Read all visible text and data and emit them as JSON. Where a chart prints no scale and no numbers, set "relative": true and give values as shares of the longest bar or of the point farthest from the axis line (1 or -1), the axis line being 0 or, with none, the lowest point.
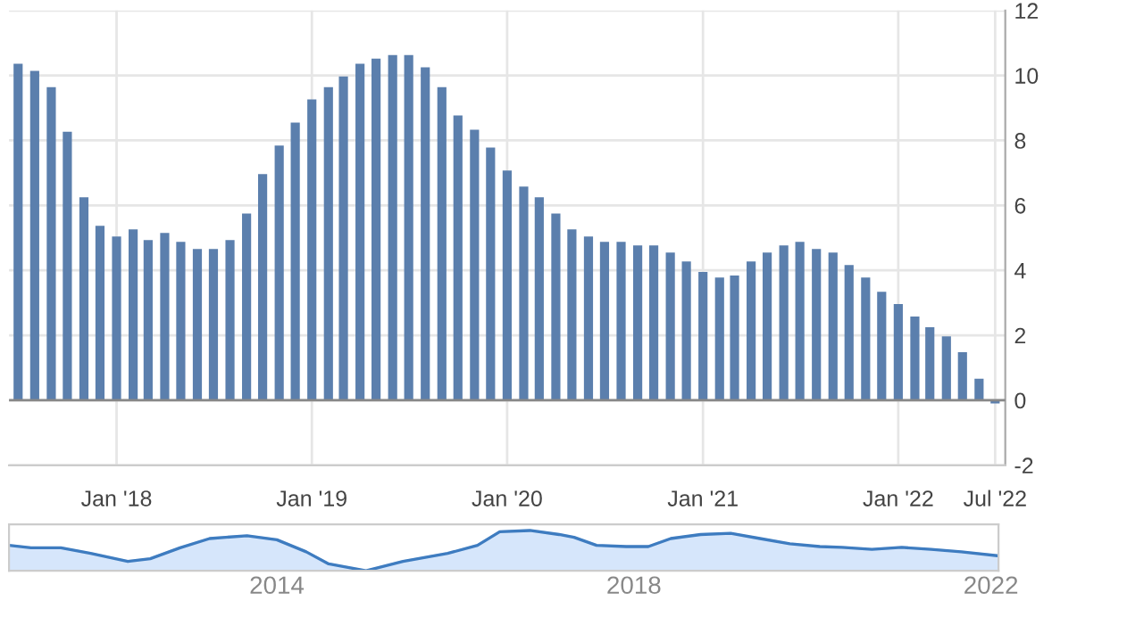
{
  "chart_data": [
    {
      "type": "bar",
      "x": [
        "2017-07",
        "2017-08",
        "2017-09",
        "2017-10",
        "2017-11",
        "2017-12",
        "2018-01",
        "2018-02",
        "2018-03",
        "2018-04",
        "2018-05",
        "2018-06",
        "2018-07",
        "2018-08",
        "2018-09",
        "2018-10",
        "2018-11",
        "2018-12",
        "2019-01",
        "2019-02",
        "2019-03",
        "2019-04",
        "2019-05",
        "2019-06",
        "2019-07",
        "2019-08",
        "2019-09",
        "2019-10",
        "2019-11",
        "2019-12",
        "2020-01",
        "2020-02",
        "2020-03",
        "2020-04",
        "2020-05",
        "2020-06",
        "2020-07",
        "2020-08",
        "2020-09",
        "2020-10",
        "2020-11",
        "2020-12",
        "2021-01",
        "2021-02",
        "2021-03",
        "2021-04",
        "2021-05",
        "2021-06",
        "2021-07",
        "2021-08",
        "2021-09",
        "2021-10",
        "2021-11",
        "2021-12",
        "2022-01",
        "2022-02",
        "2022-03",
        "2022-04",
        "2022-05",
        "2022-06",
        "2022-07"
      ],
      "values": [
        10.36,
        10.14,
        9.64,
        8.27,
        6.25,
        5.37,
        5.04,
        5.26,
        4.93,
        5.15,
        4.88,
        4.66,
        4.66,
        4.93,
        5.75,
        6.96,
        7.84,
        8.55,
        9.26,
        9.64,
        9.97,
        10.36,
        10.52,
        10.63,
        10.63,
        10.25,
        9.64,
        8.77,
        8.33,
        7.78,
        7.07,
        6.58,
        6.25,
        5.75,
        5.26,
        5.04,
        4.88,
        4.88,
        4.77,
        4.77,
        4.55,
        4.27,
        3.95,
        3.78,
        3.84,
        4.27,
        4.55,
        4.77,
        4.88,
        4.66,
        4.55,
        4.16,
        3.78,
        3.34,
        2.96,
        2.58,
        2.25,
        1.97,
        1.48,
        0.66,
        -0.1
      ],
      "color": "#5b7fad",
      "xlim": [
        "2017-06-14",
        "2022-07-20"
      ],
      "xticks": [
        {
          "value": "2018-01",
          "label": "Jan '18"
        },
        {
          "value": "2019-01",
          "label": "Jan '19"
        },
        {
          "value": "2020-01",
          "label": "Jan '20"
        },
        {
          "value": "2021-01",
          "label": "Jan '21"
        },
        {
          "value": "2022-01",
          "label": "Jan '22"
        },
        {
          "value": "2022-07",
          "label": "Jul '22"
        }
      ],
      "ylim": [
        -2,
        12
      ],
      "yticks": [
        -2,
        0,
        2,
        4,
        6,
        8,
        10,
        12
      ],
      "grid": true
    },
    {
      "type": "area",
      "relative": true,
      "xlim": [
        "2011-01",
        "2022-02"
      ],
      "tick_labels": "x",
      "color": "#3e7cc0",
      "x": [
        "2011-01",
        "2011-04",
        "2011-08",
        "2011-12",
        "2012-05",
        "2012-08",
        "2012-12",
        "2013-04",
        "2013-09",
        "2014-01",
        "2014-05",
        "2014-08",
        "2015-01",
        "2015-06",
        "2015-12",
        "2016-04",
        "2016-07",
        "2016-11",
        "2017-03",
        "2017-05",
        "2017-08",
        "2017-12",
        "2018-03",
        "2018-06",
        "2018-10",
        "2019-02",
        "2019-06",
        "2019-10",
        "2020-02",
        "2020-05",
        "2020-09",
        "2021-01",
        "2021-05",
        "2021-09",
        "2022-02"
      ],
      "values": [
        0.63,
        0.57,
        0.57,
        0.43,
        0.23,
        0.3,
        0.57,
        0.8,
        0.87,
        0.77,
        0.47,
        0.17,
        0,
        0.23,
        0.43,
        0.63,
        0.97,
        1,
        0.9,
        0.83,
        0.63,
        0.6,
        0.6,
        0.8,
        0.9,
        0.93,
        0.8,
        0.67,
        0.6,
        0.58,
        0.53,
        0.58,
        0.53,
        0.47,
        0.37
      ],
      "xticks": [
        "2014",
        "2018",
        "2022"
      ]
    }
  ]
}
